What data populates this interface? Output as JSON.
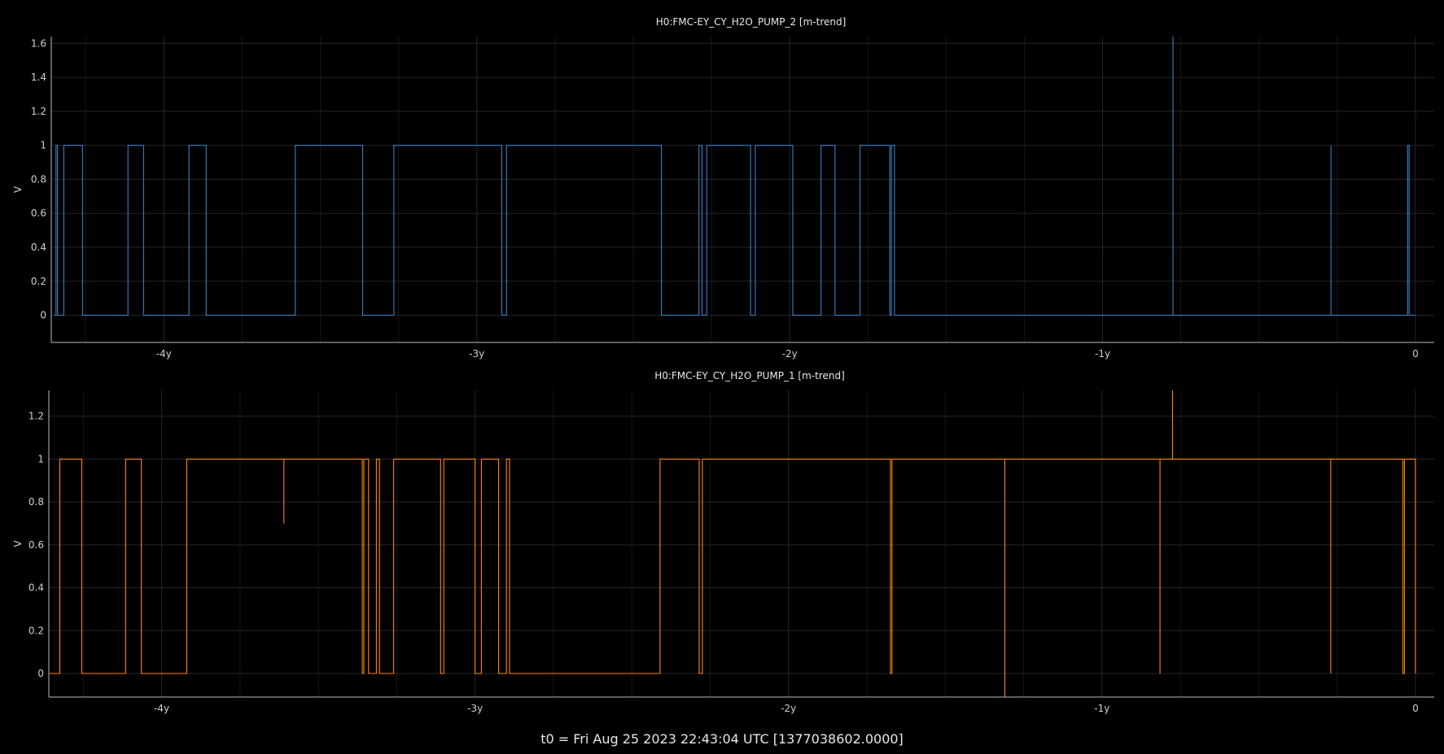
{
  "footer": "t0 = Fri Aug 25 2023 22:43:04 UTC [1377038602.0000]",
  "chart_data": [
    {
      "type": "line",
      "title": "H0:FMC-EY_CY_H2O_PUMP_2 [m-trend]",
      "ylabel": "V",
      "xlabel": "",
      "xlim": [
        -4.36,
        0.06
      ],
      "ylim": [
        -0.16,
        1.64
      ],
      "grid": true,
      "x_ticks": [
        -4,
        -3,
        -2,
        -1,
        0
      ],
      "x_tick_labels": [
        "-4y",
        "-3y",
        "-2y",
        "-1y",
        "0"
      ],
      "y_ticks": [
        0,
        0.2,
        0.4,
        0.6,
        0.8,
        1,
        1.2,
        1.4,
        1.6
      ],
      "y_tick_labels": [
        "0",
        "0.2",
        "0.4",
        "0.6",
        "0.8",
        "1",
        "1.2",
        "1.4",
        "1.6"
      ],
      "color": "#3a7fc4",
      "series": [
        {
          "x": [
            -4.35,
            -4.345,
            -4.345,
            -4.34,
            -4.34,
            -4.32,
            -4.32,
            -4.26,
            -4.26,
            -4.26,
            -4.26,
            -4.115,
            -4.115,
            -4.065,
            -4.065,
            -3.92,
            -3.92,
            -3.865,
            -3.865,
            -3.58,
            -3.58,
            -3.365,
            -3.365,
            -3.265,
            -3.265,
            -2.92,
            -2.92,
            -2.905,
            -2.905,
            -2.41,
            -2.41,
            -2.29,
            -2.29,
            -2.28,
            -2.28,
            -2.265,
            -2.265,
            -2.125,
            -2.125,
            -2.11,
            -2.11,
            -1.99,
            -1.99,
            -1.9,
            -1.9,
            -1.855,
            -1.855,
            -1.775,
            -1.775,
            -1.68,
            -1.68,
            -1.675,
            -1.675,
            -1.665,
            -1.665,
            -0.775,
            -0.775,
            -0.775,
            -0.775,
            -0.27,
            -0.27,
            -0.27,
            -0.27,
            -0.025,
            -0.025,
            -0.02,
            -0.02,
            0
          ],
          "y": [
            0,
            0,
            1,
            1,
            0,
            0,
            1,
            1,
            0,
            1,
            0,
            0,
            1,
            1,
            0,
            0,
            1,
            1,
            0,
            0,
            1,
            1,
            0,
            0,
            1,
            1,
            0,
            0,
            1,
            1,
            0,
            0,
            1,
            1,
            0,
            0,
            1,
            1,
            0,
            0,
            1,
            1,
            0,
            0,
            1,
            1,
            0,
            0,
            1,
            1,
            0,
            0,
            1,
            1,
            0,
            0,
            1.64,
            1.64,
            0,
            0,
            1,
            1,
            0,
            0,
            1,
            1,
            0,
            0
          ]
        }
      ]
    },
    {
      "type": "line",
      "title": "H0:FMC-EY_CY_H2O_PUMP_1 [m-trend]",
      "ylabel": "V",
      "xlabel": "",
      "xlim": [
        -4.36,
        0.06
      ],
      "ylim": [
        -0.11,
        1.32
      ],
      "grid": true,
      "x_ticks": [
        -4,
        -3,
        -2,
        -1,
        0
      ],
      "x_tick_labels": [
        "-4y",
        "-3y",
        "-2y",
        "-1y",
        "0"
      ],
      "y_ticks": [
        0,
        0.2,
        0.4,
        0.6,
        0.8,
        1,
        1.2
      ],
      "y_tick_labels": [
        "0",
        "0.2",
        "0.4",
        "0.6",
        "0.8",
        "1",
        "1.2"
      ],
      "color": "#ff8514",
      "series": [
        {
          "x": [
            -4.36,
            -4.325,
            -4.325,
            -4.31,
            -4.31,
            -4.255,
            -4.255,
            -4.115,
            -4.115,
            -4.065,
            -4.065,
            -3.92,
            -3.92,
            -3.865,
            -3.865,
            -3.61,
            -3.61,
            -3.61,
            -3.61,
            -3.36,
            -3.36,
            -3.355,
            -3.355,
            -3.34,
            -3.34,
            -3.315,
            -3.315,
            -3.305,
            -3.305,
            -3.26,
            -3.26,
            -3.11,
            -3.11,
            -3.1,
            -3.1,
            -3.0,
            -3.0,
            -2.98,
            -2.98,
            -2.925,
            -2.925,
            -2.9,
            -2.9,
            -2.89,
            -2.89,
            -2.41,
            -2.41,
            -2.285,
            -2.285,
            -2.275,
            -2.275,
            -1.675,
            -1.675,
            -1.67,
            -1.67,
            -1.31,
            -1.31,
            -1.31,
            -1.31,
            -0.815,
            -0.815,
            -0.815,
            -0.815,
            -0.775,
            -0.775,
            -0.775,
            -0.775,
            -0.27,
            -0.27,
            -0.27,
            -0.27,
            -0.04,
            -0.04,
            -0.035,
            -0.035,
            0.0,
            0.0,
            0.0
          ],
          "y": [
            0,
            0,
            1,
            1,
            1,
            1,
            0,
            0,
            1,
            1,
            0,
            0,
            1,
            1,
            1,
            1,
            0.7,
            0.7,
            1,
            1,
            0,
            0,
            1,
            1,
            0,
            0,
            1,
            1,
            0,
            0,
            1,
            1,
            0,
            0,
            1,
            1,
            0,
            0,
            1,
            1,
            0,
            0,
            1,
            1,
            0,
            0,
            1,
            1,
            0,
            0,
            1,
            1,
            0,
            0,
            1,
            1,
            -0.11,
            -0.11,
            1,
            1,
            0,
            0,
            1,
            1,
            1.32,
            1.32,
            1,
            1,
            0,
            0,
            1,
            1,
            0,
            0,
            1,
            1,
            0,
            0
          ]
        }
      ]
    }
  ]
}
